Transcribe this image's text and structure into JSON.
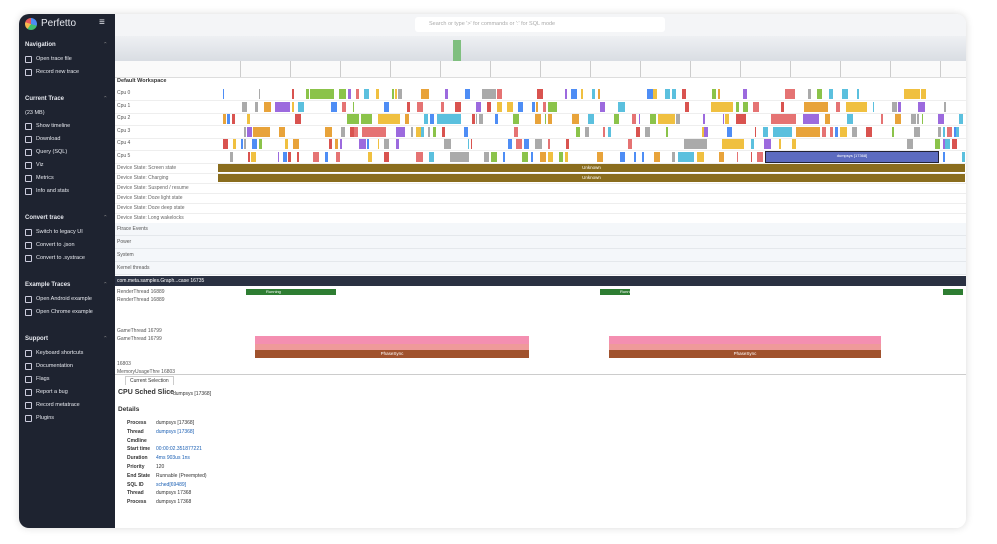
{
  "sidebar": {
    "brand": "Perfetto",
    "sections": [
      {
        "title": "Navigation",
        "items": [
          "Open trace file",
          "Record new trace"
        ]
      },
      {
        "title": "Current Trace",
        "note": "(23 MB)",
        "items": [
          "Show timeline",
          "Download",
          "Query (SQL)",
          "Viz",
          "Metrics",
          "Info and stats"
        ]
      },
      {
        "title": "Convert trace",
        "items": [
          "Switch to legacy UI",
          "Convert to .json",
          "Convert to .systrace"
        ]
      },
      {
        "title": "Example Traces",
        "items": [
          "Open Android example",
          "Open Chrome example"
        ]
      },
      {
        "title": "Support",
        "items": [
          "Keyboard shortcuts",
          "Documentation",
          "Flags",
          "Report a bug",
          "Record metatrace",
          "Plugins"
        ]
      }
    ]
  },
  "search": {
    "placeholder": "Search or type '>' for commands or ':' for SQL mode"
  },
  "timeline": {
    "workspace": "Default Workspace",
    "cpu_tracks": [
      "Cpu 0",
      "Cpu 1",
      "Cpu 2",
      "Cpu 3",
      "Cpu 4",
      "Cpu 5"
    ],
    "device_tracks": [
      "Device State: Screen state",
      "Device State: Charging",
      "Device State: Suspend / resume",
      "Device State: Doze light state",
      "Device State: Doze deep state",
      "Device State: Long wakelocks"
    ],
    "groups": [
      "Ftrace Events",
      "Power",
      "System",
      "Kernel threads"
    ],
    "process": "com.meta.samples.Graph...case 16735",
    "threads": [
      "RenderThread 16889",
      "RenderThread 16889",
      "GameThread 16799",
      "GameThread 16799",
      "16803",
      "MemoryUsageThre 16803"
    ],
    "slices": {
      "screen_state": "Unknown",
      "charging": "Unknown",
      "running": "Running",
      "phase": "PhaseSync",
      "selected": "dumpsys [17368]"
    }
  },
  "details": {
    "tab": "Current Selection",
    "title": "CPU Sched Slice",
    "subtitle": "dumpsys [17368]",
    "section": "Details",
    "rows": [
      {
        "label": "Process",
        "value": "dumpsys [17368]"
      },
      {
        "label": "Thread",
        "value": "dumpsys [17368]"
      },
      {
        "label": "Cmdline"
      },
      {
        "label": "Start time",
        "value": "00:00:02.351877221"
      },
      {
        "label": "Duration",
        "value": "4ms 903us 1ns"
      },
      {
        "label": "Priority",
        "value": "120"
      },
      {
        "label": "End State",
        "value": "Runnable (Preempted)"
      },
      {
        "label": "SQL ID",
        "value": "sched[69489]"
      },
      {
        "label": "Thread",
        "value": "dumpsys 17368"
      },
      {
        "label": "Process",
        "value": "dumpsys 17368"
      }
    ]
  }
}
